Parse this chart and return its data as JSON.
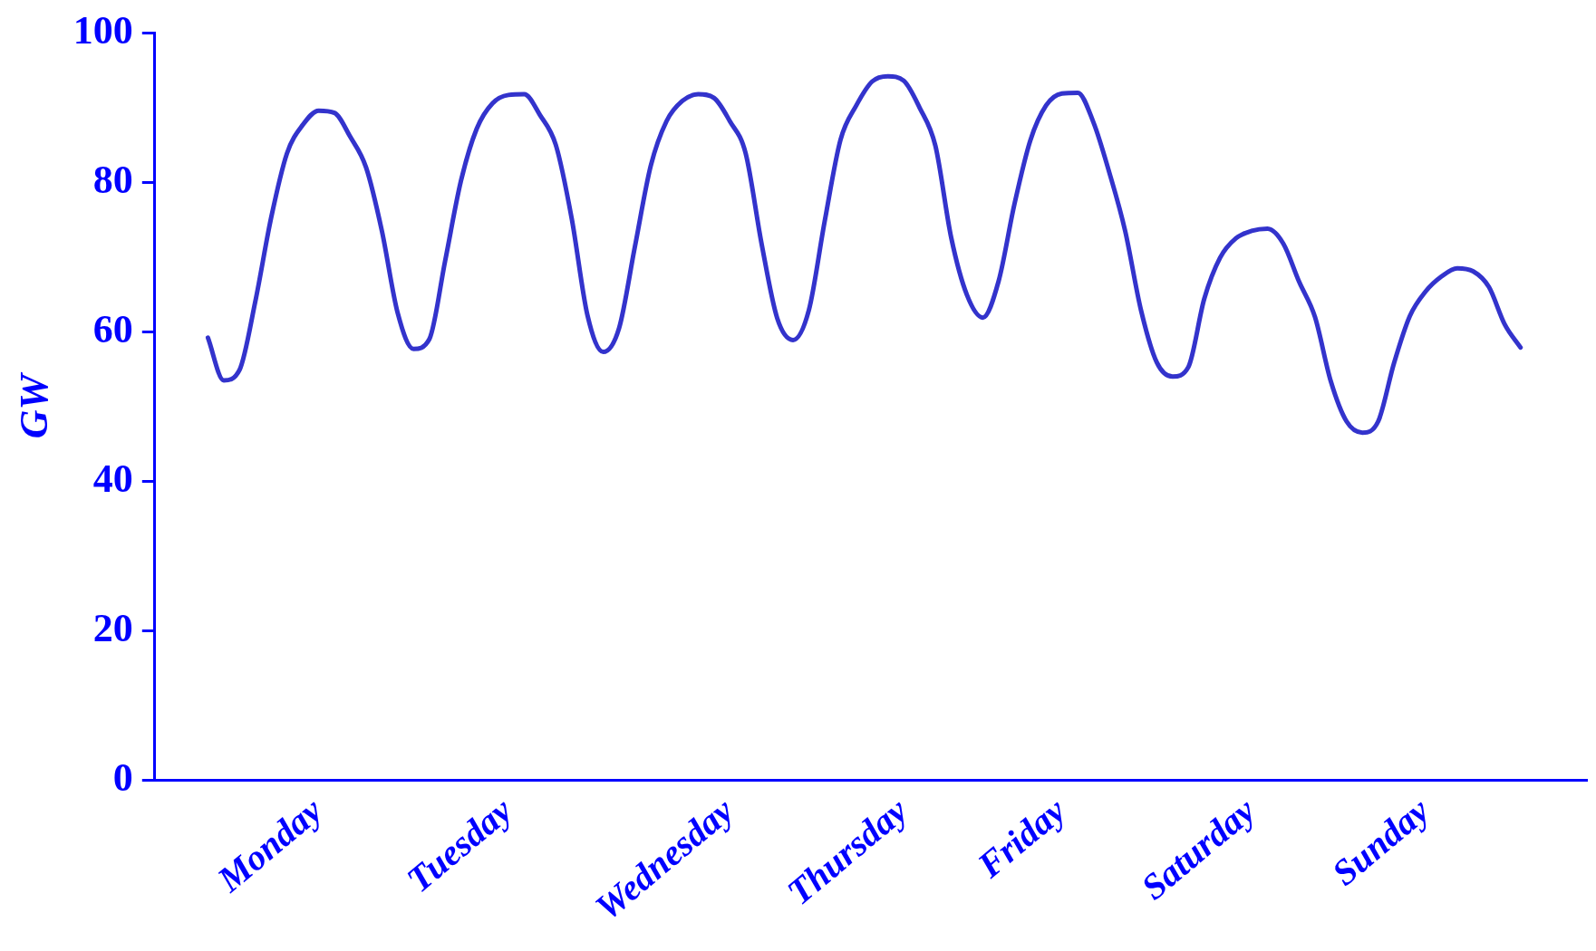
{
  "chart_data": {
    "type": "line",
    "ylabel": "GW",
    "color": "#3333cc",
    "ylim": [
      0,
      100
    ],
    "yticks": [
      0,
      20,
      40,
      60,
      80,
      100
    ],
    "categories": [
      null,
      null,
      null,
      null,
      null,
      null,
      null,
      "Monday",
      null,
      null,
      null,
      null,
      null,
      null,
      null,
      null,
      null,
      null,
      null,
      "Tuesday",
      null,
      null,
      null,
      null,
      null,
      null,
      null,
      null,
      null,
      null,
      null,
      null,
      null,
      "Wednesday",
      null,
      null,
      null,
      null,
      null,
      null,
      null,
      null,
      null,
      null,
      "Thursday",
      null,
      null,
      null,
      null,
      null,
      null,
      null,
      null,
      null,
      "Friday",
      null,
      null,
      null,
      null,
      null,
      null,
      null,
      null,
      null,
      null,
      null,
      "Saturday",
      null,
      null,
      null,
      null,
      null,
      null,
      null,
      null,
      null,
      null,
      "Sunday",
      null,
      null,
      null,
      null,
      null,
      null
    ],
    "values": [
      59.2,
      53.5,
      54.9,
      64.1,
      75.3,
      83.9,
      87.7,
      89.6,
      89.3,
      86.1,
      82.0,
      73.5,
      62.5,
      57.7,
      59.0,
      69.5,
      80.2,
      87.2,
      90.6,
      91.7,
      91.8,
      89.0,
      85.0,
      75.2,
      62.2,
      57.3,
      60.5,
      71.4,
      82.2,
      88.2,
      90.9,
      91.8,
      91.3,
      88.2,
      83.9,
      71.9,
      61.8,
      58.9,
      62.9,
      74.8,
      85.7,
      90.3,
      93.5,
      94.2,
      93.6,
      90.0,
      84.9,
      72.6,
      64.9,
      61.9,
      66.8,
      77.1,
      85.6,
      90.3,
      91.9,
      92.0,
      88.0,
      81.3,
      73.5,
      62.9,
      55.9,
      54.0,
      55.3,
      64.4,
      69.9,
      72.5,
      73.5,
      73.8,
      71.8,
      66.7,
      62.0,
      53.4,
      48.0,
      46.5,
      48.0,
      55.8,
      62.1,
      65.4,
      67.4,
      68.5,
      68.1,
      66.0,
      61.0,
      57.9
    ]
  }
}
